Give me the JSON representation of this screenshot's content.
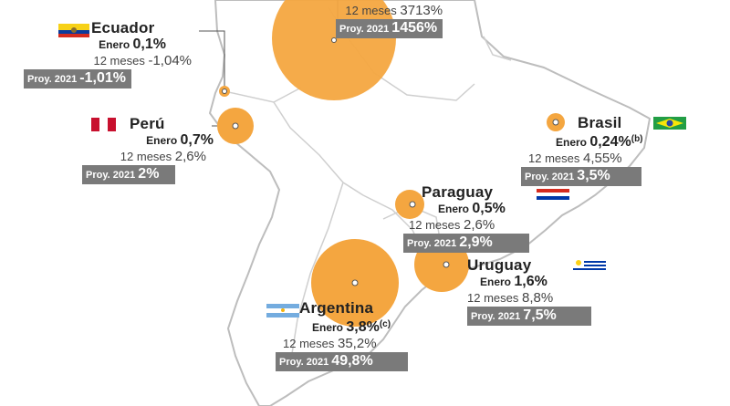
{
  "countries": {
    "venezuela": {
      "name": "",
      "m12_label": "12 meses",
      "m12_value": "3713%",
      "proy_label": "Proy. 2021",
      "proy_value": "1456%"
    },
    "ecuador": {
      "name": "Ecuador",
      "jan_label": "Enero",
      "jan_value": "0,1%",
      "m12_label": "12 meses",
      "m12_value": "-1,04%",
      "proy_label": "Proy. 2021",
      "proy_value": "-1,01%"
    },
    "peru": {
      "name": "Perú",
      "jan_label": "Enero",
      "jan_value": "0,7%",
      "m12_label": "12 meses",
      "m12_value": "2,6%",
      "proy_label": "Proy. 2021",
      "proy_value": "2%"
    },
    "brasil": {
      "name": "Brasil",
      "jan_label": "Enero",
      "jan_value": "0,24%",
      "jan_note": "(b)",
      "m12_label": "12 meses",
      "m12_value": "4,55%",
      "proy_label": "Proy. 2021",
      "proy_value": "3,5%"
    },
    "paraguay": {
      "name": "Paraguay",
      "jan_label": "Enero",
      "jan_value": "0,5%",
      "m12_label": "12 meses",
      "m12_value": "2,6%",
      "proy_label": "Proy. 2021",
      "proy_value": "2,9%"
    },
    "uruguay": {
      "name": "Uruguay",
      "jan_label": "Enero",
      "jan_value": "1,6%",
      "m12_label": "12 meses",
      "m12_value": "8,8%",
      "proy_label": "Proy. 2021",
      "proy_value": "7,5%"
    },
    "argentina": {
      "name": "Argentina",
      "jan_label": "Enero",
      "jan_value": "3,8%",
      "jan_note": "(c)",
      "m12_label": "12 meses",
      "m12_value": "35,2%",
      "proy_label": "Proy. 2021",
      "proy_value": "49,8%"
    }
  },
  "colors": {
    "bubble": "#f4a640",
    "proy_box": "#7a7a7a",
    "map_outline": "#bdbdbd"
  },
  "icons": [
    "ecuador-flag-icon",
    "peru-flag-icon",
    "brasil-flag-icon",
    "paraguay-flag-icon",
    "uruguay-flag-icon",
    "argentina-flag-icon"
  ]
}
